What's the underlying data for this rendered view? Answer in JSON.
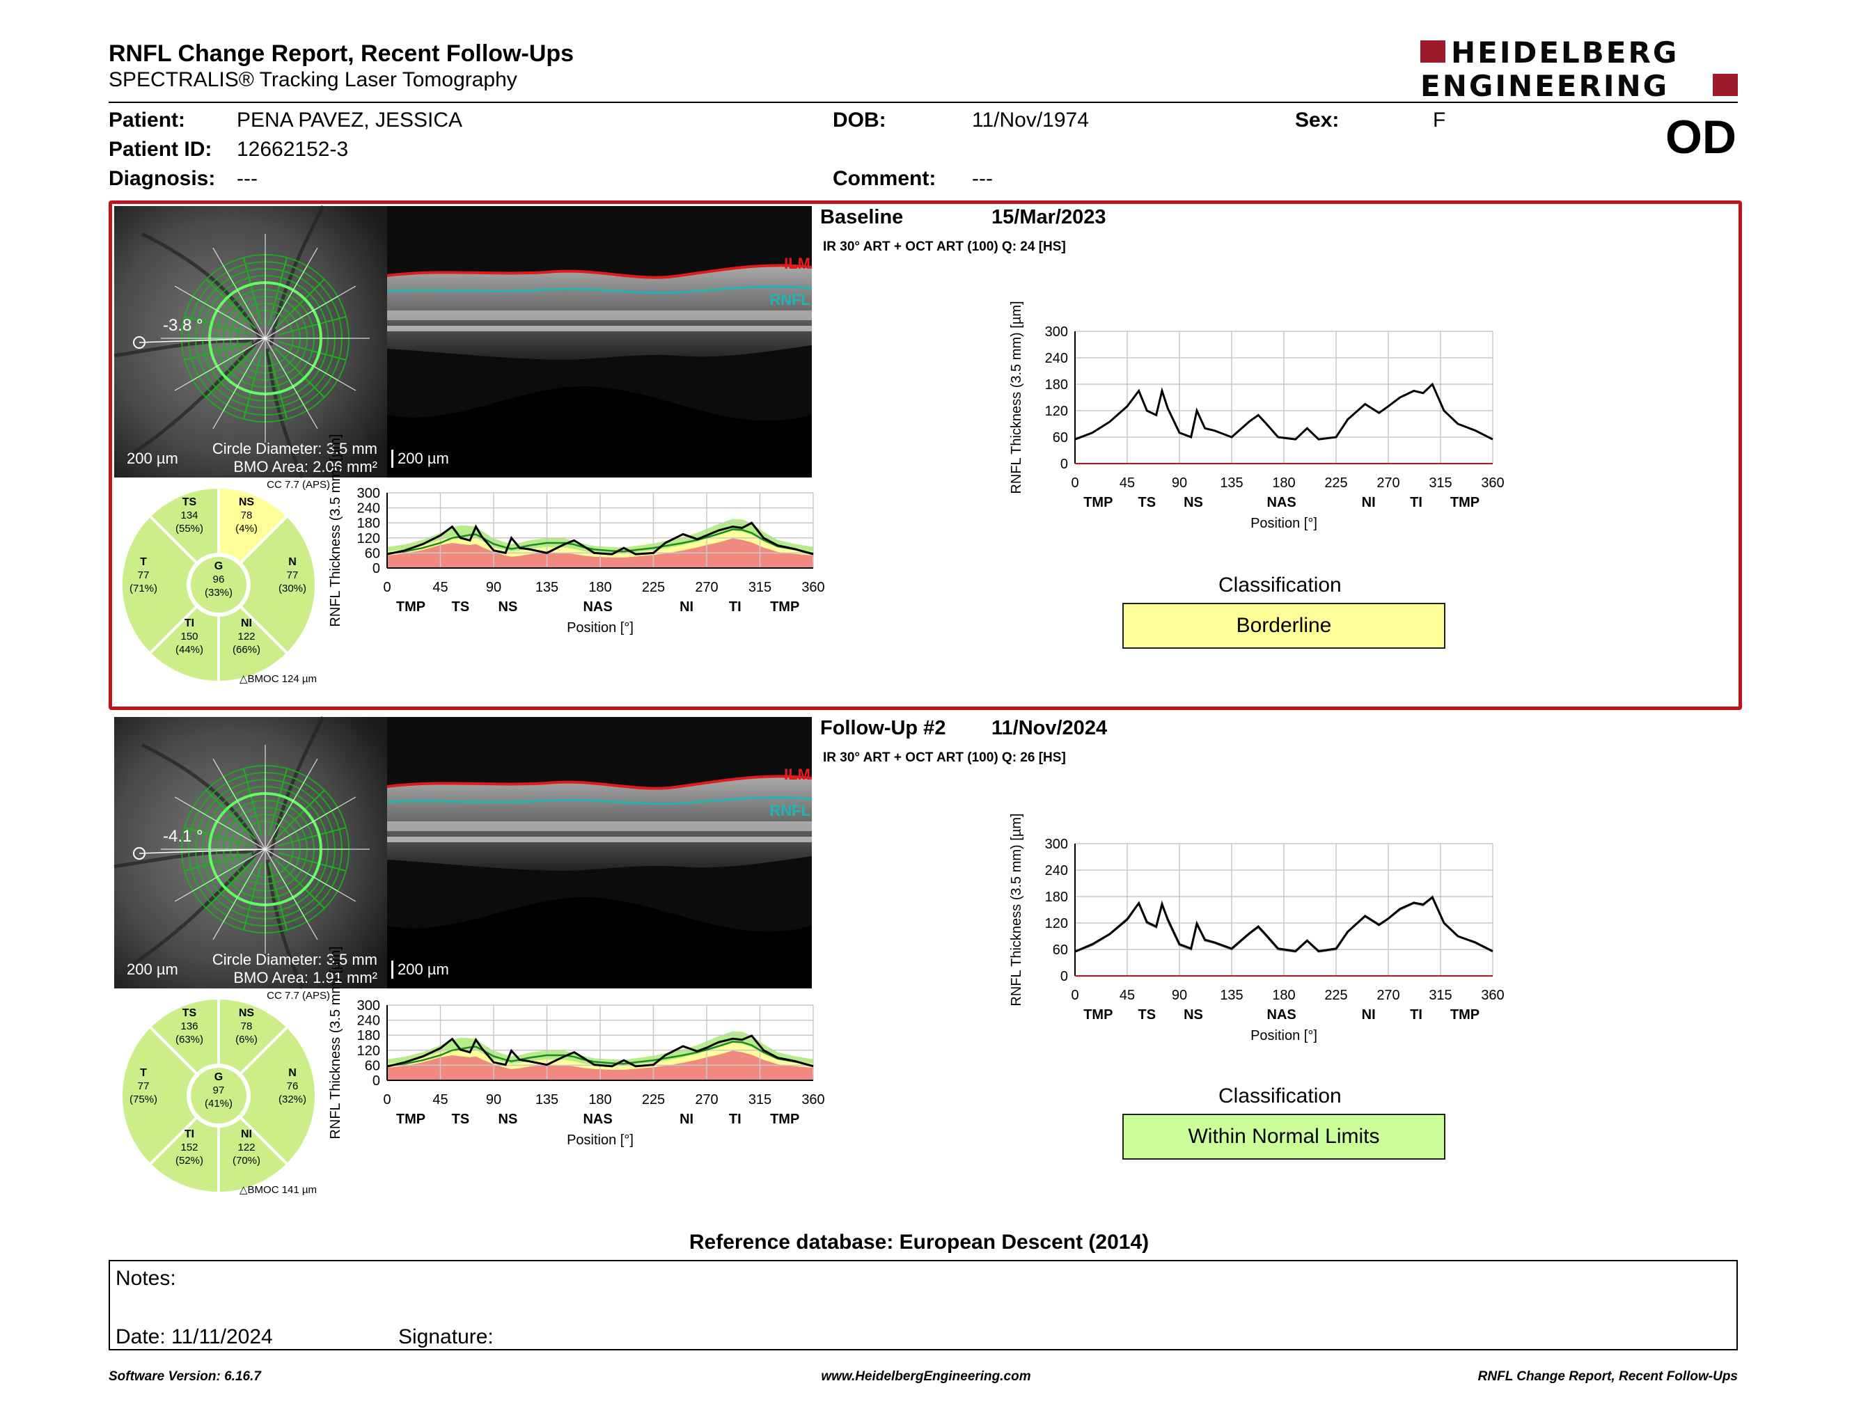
{
  "report": {
    "title": "RNFL Change Report, Recent Follow-Ups",
    "subtitle": "SPECTRALIS® Tracking Laser Tomography",
    "eye": "OD",
    "logo_line1": "HEIDELBERG",
    "logo_line2": "ENGINEERING"
  },
  "patient": {
    "patient_label": "Patient:",
    "patient_value": "PENA PAVEZ, JESSICA",
    "id_label": "Patient ID:",
    "id_value": "12662152-3",
    "diagnosis_label": "Diagnosis:",
    "diagnosis_value": "---",
    "dob_label": "DOB:",
    "dob_value": "11/Nov/1974",
    "comment_label": "Comment:",
    "comment_value": "---",
    "sex_label": "Sex:",
    "sex_value": "F"
  },
  "exams": [
    {
      "label": "Baseline",
      "date": "15/Mar/2023",
      "scan_info": "IR 30° ART + OCT ART (100) Q: 24 [HS]",
      "angle": "-3.8 °",
      "scale_fundus": "200 µm",
      "scale_oct": "200 µm",
      "circle_diameter": "Circle Diameter: 3.5 mm",
      "bmo_area": "BMO Area: 2.06 mm²",
      "ilm_label": "ILM",
      "rnfl_label": "RNFL",
      "cc_text": "CC 7.7 (APS)",
      "bmoc_text": "BMOC 124 µm",
      "sectors": {
        "TS": {
          "name": "TS",
          "value": "134",
          "pct": "(55%)"
        },
        "NS": {
          "name": "NS",
          "value": "78",
          "pct": "(4%)"
        },
        "T": {
          "name": "T",
          "value": "77",
          "pct": "(71%)"
        },
        "G": {
          "name": "G",
          "value": "96",
          "pct": "(33%)"
        },
        "N": {
          "name": "N",
          "value": "77",
          "pct": "(30%)"
        },
        "TI": {
          "name": "TI",
          "value": "150",
          "pct": "(44%)"
        },
        "NI": {
          "name": "NI",
          "value": "122",
          "pct": "(66%)"
        }
      },
      "classification_label": "Classification",
      "classification": "Borderline",
      "classification_color": "#ffff99"
    },
    {
      "label": "Follow-Up #2",
      "date": "11/Nov/2024",
      "scan_info": "IR 30° ART + OCT ART (100) Q: 26 [HS]",
      "angle": "-4.1 °",
      "scale_fundus": "200 µm",
      "scale_oct": "200 µm",
      "circle_diameter": "Circle Diameter: 3.5 mm",
      "bmo_area": "BMO Area: 1.91 mm²",
      "ilm_label": "ILM",
      "rnfl_label": "RNFL",
      "cc_text": "CC 7.7 (APS)",
      "bmoc_text": "BMOC 141 µm",
      "sectors": {
        "TS": {
          "name": "TS",
          "value": "136",
          "pct": "(63%)"
        },
        "NS": {
          "name": "NS",
          "value": "78",
          "pct": "(6%)"
        },
        "T": {
          "name": "T",
          "value": "77",
          "pct": "(75%)"
        },
        "G": {
          "name": "G",
          "value": "97",
          "pct": "(41%)"
        },
        "N": {
          "name": "N",
          "value": "76",
          "pct": "(32%)"
        },
        "TI": {
          "name": "TI",
          "value": "152",
          "pct": "(52%)"
        },
        "NI": {
          "name": "NI",
          "value": "122",
          "pct": "(70%)"
        }
      },
      "classification_label": "Classification",
      "classification": "Within Normal Limits",
      "classification_color": "#ccff99"
    }
  ],
  "chart_data": [
    {
      "type": "line",
      "name": "Baseline RNFL profile vs normative bands",
      "ylabel": "RNFL Thickness (3.5 mm) [µm]",
      "xlabel": "Position [°]",
      "ylim": [
        0,
        300
      ],
      "xlim": [
        0,
        360
      ],
      "x_ticks": [
        0,
        45,
        90,
        135,
        180,
        225,
        270,
        315,
        360
      ],
      "y_ticks": [
        0,
        60,
        120,
        180,
        240,
        300
      ],
      "sector_labels": [
        {
          "label": "TMP",
          "x": 20
        },
        {
          "label": "TS",
          "x": 62
        },
        {
          "label": "NS",
          "x": 102
        },
        {
          "label": "NAS",
          "x": 178
        },
        {
          "label": "NI",
          "x": 253
        },
        {
          "label": "TI",
          "x": 294
        },
        {
          "label": "TMP",
          "x": 336
        }
      ],
      "x": [
        0,
        15,
        30,
        45,
        55,
        62,
        70,
        75,
        80,
        90,
        100,
        105,
        112,
        120,
        135,
        150,
        158,
        165,
        175,
        190,
        200,
        210,
        225,
        235,
        250,
        262,
        270,
        280,
        292,
        300,
        308,
        318,
        330,
        345,
        360
      ],
      "values": [
        55,
        70,
        95,
        130,
        165,
        120,
        110,
        165,
        125,
        70,
        60,
        120,
        80,
        75,
        60,
        95,
        110,
        90,
        60,
        55,
        80,
        55,
        60,
        100,
        135,
        115,
        130,
        150,
        165,
        160,
        180,
        120,
        90,
        75,
        55
      ],
      "bands": {
        "red_upper": [
          50,
          58,
          72,
          92,
          100,
          96,
          92,
          96,
          84,
          64,
          50,
          45,
          48,
          55,
          62,
          60,
          56,
          50,
          45,
          42,
          42,
          46,
          52,
          58,
          70,
          82,
          92,
          102,
          118,
          112,
          102,
          82,
          64,
          56,
          50
        ],
        "yellow_upper": [
          66,
          74,
          90,
          112,
          126,
          124,
          120,
          122,
          108,
          84,
          70,
          66,
          70,
          76,
          84,
          82,
          76,
          68,
          62,
          58,
          58,
          64,
          70,
          78,
          92,
          106,
          118,
          132,
          150,
          146,
          132,
          106,
          84,
          74,
          66
        ],
        "green_upper": [
          84,
          94,
          112,
          140,
          162,
          170,
          168,
          166,
          148,
          118,
          102,
          96,
          100,
          110,
          120,
          118,
          108,
          98,
          88,
          84,
          82,
          88,
          98,
          108,
          124,
          140,
          156,
          176,
          196,
          194,
          178,
          144,
          112,
          96,
          84
        ],
        "mean": [
          58,
          66,
          80,
          100,
          120,
          125,
          132,
          134,
          122,
          96,
          82,
          76,
          82,
          90,
          100,
          100,
          94,
          84,
          74,
          68,
          66,
          72,
          80,
          88,
          100,
          112,
          122,
          136,
          154,
          152,
          140,
          112,
          86,
          74,
          58
        ]
      },
      "series": [
        {
          "name": "Baseline",
          "color": "#000000"
        }
      ]
    },
    {
      "type": "line",
      "name": "Baseline RNFL change plot",
      "ylabel": "RNFL Thickness (3.5 mm) [µm]",
      "xlabel": "Position [°]",
      "ylim": [
        0,
        300
      ],
      "xlim": [
        0,
        360
      ],
      "x_ticks": [
        0,
        45,
        90,
        135,
        180,
        225,
        270,
        315,
        360
      ],
      "y_ticks": [
        0,
        60,
        120,
        180,
        240,
        300
      ],
      "sector_labels": [
        {
          "label": "TMP",
          "x": 20
        },
        {
          "label": "TS",
          "x": 62
        },
        {
          "label": "NS",
          "x": 102
        },
        {
          "label": "NAS",
          "x": 178
        },
        {
          "label": "NI",
          "x": 253
        },
        {
          "label": "TI",
          "x": 294
        },
        {
          "label": "TMP",
          "x": 336
        }
      ],
      "x": [
        0,
        15,
        30,
        45,
        55,
        62,
        70,
        75,
        80,
        90,
        100,
        105,
        112,
        120,
        135,
        150,
        158,
        165,
        175,
        190,
        200,
        210,
        225,
        235,
        250,
        262,
        270,
        280,
        292,
        300,
        308,
        318,
        330,
        345,
        360
      ],
      "series": [
        {
          "name": "Baseline",
          "color": "#000000",
          "values": [
            55,
            70,
            95,
            130,
            165,
            120,
            110,
            165,
            125,
            70,
            60,
            120,
            80,
            75,
            60,
            95,
            110,
            90,
            60,
            55,
            80,
            55,
            60,
            100,
            135,
            115,
            130,
            150,
            165,
            160,
            180,
            120,
            90,
            75,
            55
          ]
        }
      ]
    },
    {
      "type": "line",
      "name": "Follow-Up #2 RNFL profile vs normative bands",
      "ylabel": "RNFL Thickness (3.5 mm) [µm]",
      "xlabel": "Position [°]",
      "ylim": [
        0,
        300
      ],
      "xlim": [
        0,
        360
      ],
      "x_ticks": [
        0,
        45,
        90,
        135,
        180,
        225,
        270,
        315,
        360
      ],
      "y_ticks": [
        0,
        60,
        120,
        180,
        240,
        300
      ],
      "sector_labels": [
        {
          "label": "TMP",
          "x": 20
        },
        {
          "label": "TS",
          "x": 62
        },
        {
          "label": "NS",
          "x": 102
        },
        {
          "label": "NAS",
          "x": 178
        },
        {
          "label": "NI",
          "x": 253
        },
        {
          "label": "TI",
          "x": 294
        },
        {
          "label": "TMP",
          "x": 336
        }
      ],
      "x": [
        0,
        15,
        30,
        45,
        55,
        62,
        70,
        75,
        80,
        90,
        100,
        105,
        112,
        120,
        135,
        150,
        158,
        165,
        175,
        190,
        200,
        210,
        225,
        235,
        250,
        262,
        270,
        280,
        292,
        300,
        308,
        318,
        330,
        345,
        360
      ],
      "values": [
        55,
        72,
        95,
        128,
        165,
        122,
        112,
        162,
        128,
        72,
        62,
        118,
        82,
        76,
        62,
        96,
        112,
        92,
        62,
        56,
        80,
        56,
        62,
        100,
        136,
        116,
        130,
        152,
        166,
        162,
        178,
        120,
        90,
        76,
        56
      ],
      "bands": {
        "red_upper": [
          50,
          58,
          72,
          92,
          100,
          96,
          92,
          96,
          84,
          64,
          50,
          45,
          48,
          55,
          62,
          60,
          56,
          50,
          45,
          42,
          42,
          46,
          52,
          58,
          70,
          82,
          92,
          102,
          118,
          112,
          102,
          82,
          64,
          56,
          50
        ],
        "yellow_upper": [
          66,
          74,
          90,
          112,
          126,
          124,
          120,
          122,
          108,
          84,
          70,
          66,
          70,
          76,
          84,
          82,
          76,
          68,
          62,
          58,
          58,
          64,
          70,
          78,
          92,
          106,
          118,
          132,
          150,
          146,
          132,
          106,
          84,
          74,
          66
        ],
        "green_upper": [
          84,
          94,
          112,
          140,
          162,
          170,
          168,
          166,
          148,
          118,
          102,
          96,
          100,
          110,
          120,
          118,
          108,
          98,
          88,
          84,
          82,
          88,
          98,
          108,
          124,
          140,
          156,
          176,
          196,
          194,
          178,
          144,
          112,
          96,
          84
        ],
        "mean": [
          58,
          66,
          80,
          100,
          120,
          125,
          132,
          134,
          122,
          96,
          82,
          76,
          82,
          90,
          100,
          100,
          94,
          84,
          74,
          68,
          66,
          72,
          80,
          88,
          100,
          112,
          122,
          136,
          154,
          152,
          140,
          112,
          86,
          74,
          58
        ]
      },
      "series": [
        {
          "name": "Follow-Up #2",
          "color": "#000000"
        }
      ]
    },
    {
      "type": "line",
      "name": "Follow-Up #2 RNFL change plot",
      "ylabel": "RNFL Thickness (3.5 mm) [µm]",
      "xlabel": "Position [°]",
      "ylim": [
        0,
        300
      ],
      "xlim": [
        0,
        360
      ],
      "x_ticks": [
        0,
        45,
        90,
        135,
        180,
        225,
        270,
        315,
        360
      ],
      "y_ticks": [
        0,
        60,
        120,
        180,
        240,
        300
      ],
      "sector_labels": [
        {
          "label": "TMP",
          "x": 20
        },
        {
          "label": "TS",
          "x": 62
        },
        {
          "label": "NS",
          "x": 102
        },
        {
          "label": "NAS",
          "x": 178
        },
        {
          "label": "NI",
          "x": 253
        },
        {
          "label": "TI",
          "x": 294
        },
        {
          "label": "TMP",
          "x": 336
        }
      ],
      "x": [
        0,
        15,
        30,
        45,
        55,
        62,
        70,
        75,
        80,
        90,
        100,
        105,
        112,
        120,
        135,
        150,
        158,
        165,
        175,
        190,
        200,
        210,
        225,
        235,
        250,
        262,
        270,
        280,
        292,
        300,
        308,
        318,
        330,
        345,
        360
      ],
      "series": [
        {
          "name": "Baseline",
          "color": "#999999",
          "values": [
            55,
            70,
            95,
            130,
            165,
            120,
            110,
            165,
            125,
            70,
            60,
            120,
            80,
            75,
            60,
            95,
            110,
            90,
            60,
            55,
            80,
            55,
            60,
            100,
            135,
            115,
            130,
            150,
            165,
            160,
            180,
            120,
            90,
            75,
            55
          ]
        },
        {
          "name": "Follow-Up #2",
          "color": "#000000",
          "values": [
            55,
            72,
            95,
            128,
            165,
            122,
            112,
            162,
            128,
            72,
            62,
            118,
            82,
            76,
            62,
            96,
            112,
            92,
            62,
            56,
            80,
            56,
            62,
            100,
            136,
            116,
            130,
            152,
            166,
            162,
            178,
            120,
            90,
            76,
            56
          ]
        }
      ]
    }
  ],
  "footer": {
    "refdb": "Reference database: European Descent (2014)",
    "notes_label": "Notes:",
    "date_label": "Date: 11/11/2024",
    "signature_label": "Signature:",
    "software": "Software Version: 6.16.7",
    "website": "www.HeidelbergEngineering.com",
    "report_name": "RNFL Change Report, Recent Follow-Ups"
  }
}
